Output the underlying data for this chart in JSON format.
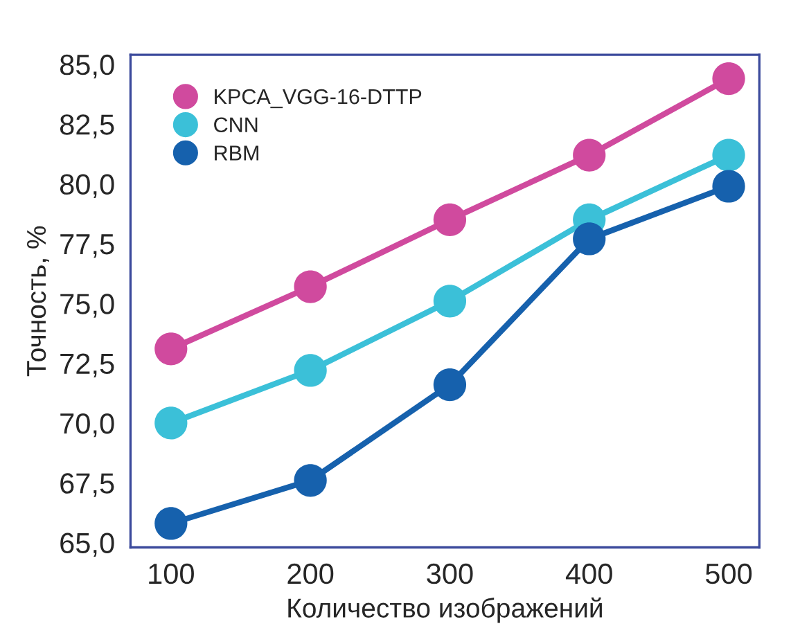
{
  "chart_data": {
    "type": "line",
    "xlabel": "Количество изображений",
    "ylabel": "Точность, %",
    "x": [
      100,
      200,
      300,
      400,
      500
    ],
    "series": [
      {
        "name": "KPCA_VGG-16-DTTP",
        "color": "#d04a9e",
        "values": [
          73.1,
          75.7,
          78.5,
          81.2,
          84.4
        ]
      },
      {
        "name": "CNN",
        "color": "#3bc0d8",
        "values": [
          70.0,
          72.2,
          75.1,
          78.5,
          81.2
        ]
      },
      {
        "name": "RBM",
        "color": "#1661ad",
        "values": [
          65.8,
          67.6,
          71.6,
          77.7,
          79.9
        ]
      }
    ],
    "xlim": [
      71,
      522
    ],
    "ylim": [
      64.8,
      85.4
    ],
    "xticks": [
      100,
      200,
      300,
      400,
      500
    ],
    "yticks": [
      {
        "value": 65,
        "label": "65,0"
      },
      {
        "value": 67.5,
        "label": "67,5"
      },
      {
        "value": 70,
        "label": "70,0"
      },
      {
        "value": 72.5,
        "label": "72,5"
      },
      {
        "value": 75,
        "label": "75,0"
      },
      {
        "value": 77.5,
        "label": "77,5"
      },
      {
        "value": 80,
        "label": "80,0"
      },
      {
        "value": 82.5,
        "label": "82,5"
      },
      {
        "value": 85,
        "label": "85,0"
      }
    ],
    "marker": "circle",
    "line_style": "solid",
    "grid": false,
    "legend": "top left"
  }
}
